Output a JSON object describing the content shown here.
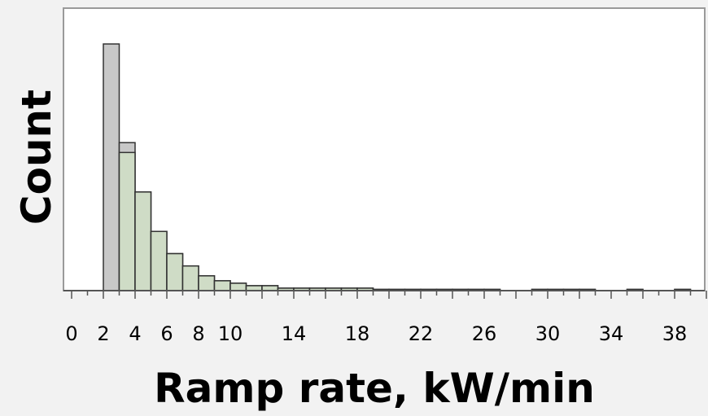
{
  "chart_data": {
    "type": "bar",
    "xlabel": "Ramp rate, kW/min",
    "ylabel": "Count",
    "xlim": [
      0,
      40
    ],
    "x_tick_labels": [
      "0",
      "2",
      "4",
      "6",
      "8",
      "10",
      "14",
      "18",
      "22",
      "26",
      "30",
      "34",
      "38"
    ],
    "x_tick_values": [
      0,
      2,
      4,
      6,
      8,
      10,
      14,
      18,
      22,
      26,
      30,
      34,
      38
    ],
    "bin_width": 1,
    "grid": false,
    "y_ticks_shown": false,
    "colors": {
      "gray_fill": "#c8c8c8",
      "green_fill": "#cfdcc6",
      "bar_stroke": "#333333",
      "plot_background": "#ffffff",
      "page_background": "#f2f2f2"
    },
    "bins": [
      {
        "start": 2,
        "end": 3,
        "total": 100,
        "highlighted": 0
      },
      {
        "start": 3,
        "end": 4,
        "total": 60,
        "highlighted": 56
      },
      {
        "start": 4,
        "end": 5,
        "total": 40,
        "highlighted": 40
      },
      {
        "start": 5,
        "end": 6,
        "total": 24,
        "highlighted": 24
      },
      {
        "start": 6,
        "end": 7,
        "total": 15,
        "highlighted": 15
      },
      {
        "start": 7,
        "end": 8,
        "total": 10,
        "highlighted": 10
      },
      {
        "start": 8,
        "end": 9,
        "total": 6,
        "highlighted": 6
      },
      {
        "start": 9,
        "end": 10,
        "total": 4,
        "highlighted": 4
      },
      {
        "start": 10,
        "end": 11,
        "total": 3,
        "highlighted": 3
      },
      {
        "start": 11,
        "end": 12,
        "total": 2,
        "highlighted": 2
      },
      {
        "start": 12,
        "end": 13,
        "total": 2,
        "highlighted": 2
      },
      {
        "start": 13,
        "end": 14,
        "total": 1,
        "highlighted": 1
      },
      {
        "start": 14,
        "end": 15,
        "total": 1,
        "highlighted": 1
      },
      {
        "start": 15,
        "end": 16,
        "total": 1,
        "highlighted": 1
      },
      {
        "start": 16,
        "end": 17,
        "total": 1,
        "highlighted": 1
      },
      {
        "start": 17,
        "end": 18,
        "total": 1,
        "highlighted": 1
      },
      {
        "start": 18,
        "end": 19,
        "total": 1,
        "highlighted": 1
      },
      {
        "start": 19,
        "end": 20,
        "total": 0.5,
        "highlighted": 0.5
      },
      {
        "start": 20,
        "end": 21,
        "total": 0.5,
        "highlighted": 0.5
      },
      {
        "start": 21,
        "end": 22,
        "total": 0.5,
        "highlighted": 0.5
      },
      {
        "start": 22,
        "end": 23,
        "total": 0.5,
        "highlighted": 0.5
      },
      {
        "start": 23,
        "end": 24,
        "total": 0.5,
        "highlighted": 0.5
      },
      {
        "start": 24,
        "end": 25,
        "total": 0.5,
        "highlighted": 0.5
      },
      {
        "start": 25,
        "end": 26,
        "total": 0.5,
        "highlighted": 0.5
      },
      {
        "start": 26,
        "end": 27,
        "total": 0.5,
        "highlighted": 0.5
      },
      {
        "start": 29,
        "end": 30,
        "total": 0.5,
        "highlighted": 0.5
      },
      {
        "start": 30,
        "end": 31,
        "total": 0.5,
        "highlighted": 0.5
      },
      {
        "start": 31,
        "end": 32,
        "total": 0.5,
        "highlighted": 0.5
      },
      {
        "start": 32,
        "end": 33,
        "total": 0.5,
        "highlighted": 0.5
      },
      {
        "start": 35,
        "end": 36,
        "total": 0.5,
        "highlighted": 0.5
      },
      {
        "start": 38,
        "end": 39,
        "total": 0.5,
        "highlighted": 0.5
      }
    ]
  }
}
